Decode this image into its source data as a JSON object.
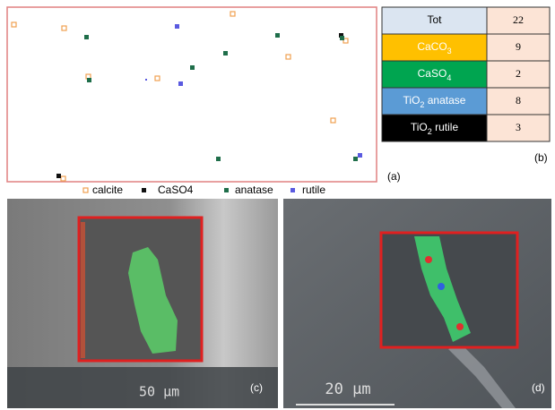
{
  "panel_a": {
    "legend": [
      "calcite",
      "CaSO4",
      "anatase",
      "rutile"
    ],
    "label": "(a)"
  },
  "panel_b": {
    "label": "(b)",
    "rows": [
      {
        "name": [
          {
            "text": "Tot"
          }
        ],
        "count": "22"
      },
      {
        "name": [
          {
            "text": "CaCO"
          },
          {
            "text": "3",
            "sub": true
          }
        ],
        "count": "9"
      },
      {
        "name": [
          {
            "text": "CaSO"
          },
          {
            "text": "4",
            "sub": true
          }
        ],
        "count": "2"
      },
      {
        "name": [
          {
            "text": "TiO"
          },
          {
            "text": "2",
            "sub": true
          },
          {
            "text": " anatase"
          }
        ],
        "count": "8"
      },
      {
        "name": [
          {
            "text": "TiO"
          },
          {
            "text": "2",
            "sub": true
          },
          {
            "text": " rutile"
          }
        ],
        "count": "3"
      }
    ]
  },
  "panel_c": {
    "scale": "50 µm",
    "label": "(c)"
  },
  "panel_d": {
    "scale": "20 µm",
    "label": "(d)"
  }
}
